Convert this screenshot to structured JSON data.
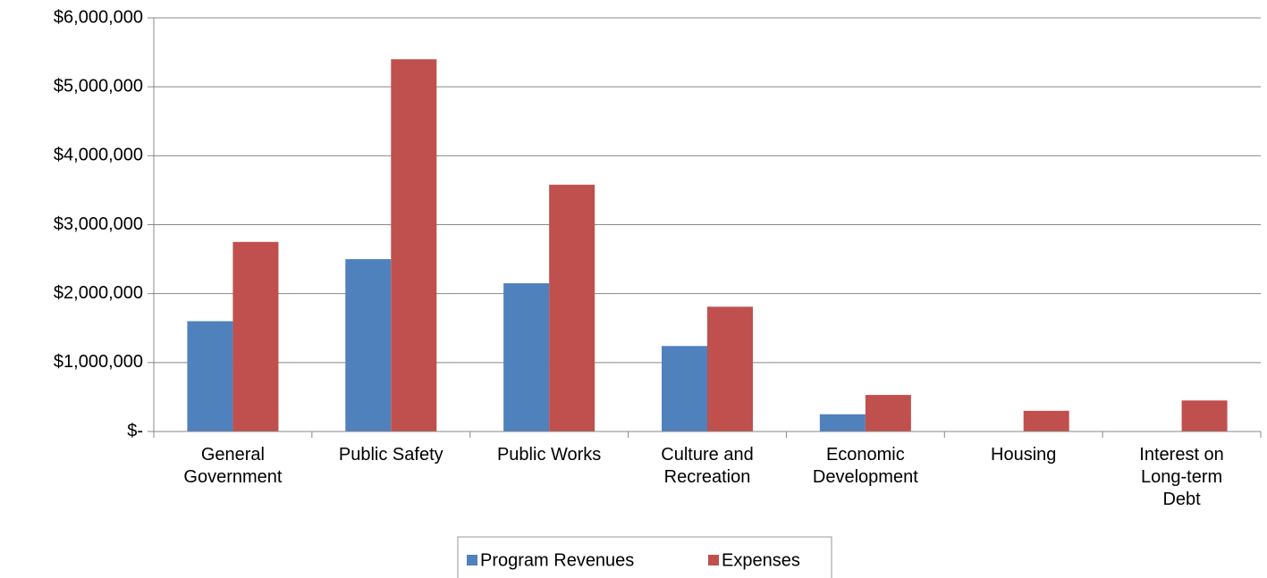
{
  "chart_data": {
    "type": "bar",
    "categories": [
      "General Government",
      "Public Safety",
      "Public Works",
      "Culture and Recreation",
      "Economic Development",
      "Housing",
      "Interest on Long-term Debt"
    ],
    "series": [
      {
        "name": "Program Revenues",
        "color": "#4f81bd",
        "values": [
          1600000,
          2500000,
          2150000,
          1240000,
          250000,
          0,
          0
        ]
      },
      {
        "name": "Expenses",
        "color": "#c0504d",
        "values": [
          2750000,
          5400000,
          3580000,
          1810000,
          530000,
          300000,
          450000
        ]
      }
    ],
    "ylim": [
      0,
      6000000
    ],
    "yticks": [
      {
        "value": 0,
        "label": "$-"
      },
      {
        "value": 1000000,
        "label": "$1,000,000"
      },
      {
        "value": 2000000,
        "label": "$2,000,000"
      },
      {
        "value": 3000000,
        "label": "$3,000,000"
      },
      {
        "value": 4000000,
        "label": "$4,000,000"
      },
      {
        "value": 5000000,
        "label": "$5,000,000"
      },
      {
        "value": 6000000,
        "label": "$6,000,000"
      }
    ],
    "grid": true,
    "legend": "bottom"
  }
}
